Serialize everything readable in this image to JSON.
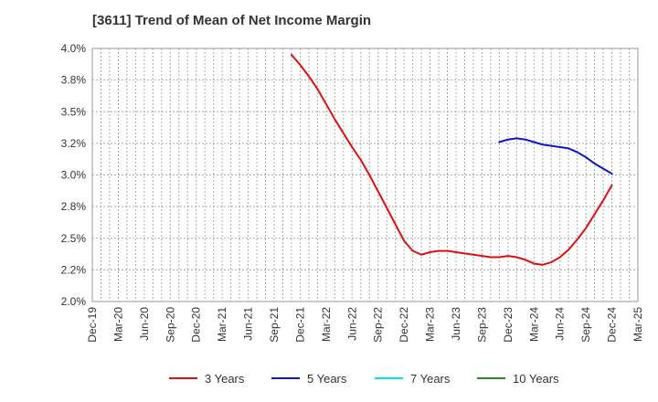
{
  "chart_data": {
    "type": "line",
    "title": "[3611]  Trend of Mean of Net Income Margin",
    "x_ticks": [
      "Dec-19",
      "Mar-20",
      "Jun-20",
      "Sep-20",
      "Dec-20",
      "Mar-21",
      "Jun-21",
      "Sep-21",
      "Dec-21",
      "Mar-22",
      "Jun-22",
      "Sep-22",
      "Dec-22",
      "Mar-23",
      "Jun-23",
      "Sep-23",
      "Dec-23",
      "Mar-24",
      "Jun-24",
      "Sep-24",
      "Dec-24",
      "Mar-25"
    ],
    "y_ticks": [
      "2.0%",
      "2.2%",
      "2.5%",
      "2.8%",
      "3.0%",
      "3.2%",
      "3.5%",
      "3.8%",
      "4.0%"
    ],
    "ylim": [
      2.0,
      4.0
    ],
    "y_unit": "%",
    "grid": true,
    "legend_position": "bottom",
    "series": [
      {
        "name": "3 Years",
        "color": "#dd1111",
        "x": [
          "Nov-21",
          "Dec-21",
          "Jan-22",
          "Feb-22",
          "Mar-22",
          "Apr-22",
          "May-22",
          "Jun-22",
          "Jul-22",
          "Aug-22",
          "Sep-22",
          "Oct-22",
          "Nov-22",
          "Dec-22",
          "Jan-23",
          "Feb-23",
          "Mar-23",
          "Apr-23",
          "May-23",
          "Jun-23",
          "Jul-23",
          "Aug-23",
          "Sep-23",
          "Oct-23",
          "Nov-23",
          "Dec-23",
          "Jan-24",
          "Feb-24",
          "Mar-24",
          "Apr-24",
          "May-24",
          "Jun-24",
          "Jul-24",
          "Aug-24",
          "Sep-24",
          "Oct-24",
          "Nov-24",
          "Dec-24"
        ],
        "values": [
          3.95,
          3.87,
          3.78,
          3.68,
          3.56,
          3.44,
          3.33,
          3.22,
          3.12,
          3.0,
          2.87,
          2.74,
          2.61,
          2.48,
          2.4,
          2.37,
          2.39,
          2.4,
          2.4,
          2.39,
          2.38,
          2.37,
          2.36,
          2.35,
          2.35,
          2.36,
          2.35,
          2.33,
          2.3,
          2.29,
          2.31,
          2.35,
          2.41,
          2.49,
          2.58,
          2.69,
          2.8,
          2.92
        ]
      },
      {
        "name": "5 Years",
        "color": "#0a18c8",
        "x": [
          "Nov-23",
          "Dec-23",
          "Jan-24",
          "Feb-24",
          "Mar-24",
          "Apr-24",
          "May-24",
          "Jun-24",
          "Jul-24",
          "Aug-24",
          "Sep-24",
          "Oct-24",
          "Nov-24",
          "Dec-24"
        ],
        "values": [
          3.26,
          3.28,
          3.29,
          3.28,
          3.26,
          3.24,
          3.23,
          3.22,
          3.21,
          3.18,
          3.14,
          3.09,
          3.05,
          3.01
        ]
      },
      {
        "name": "7 Years",
        "color": "#00e5ee",
        "x": [],
        "values": []
      },
      {
        "name": "10 Years",
        "color": "#2a8a2a",
        "x": [],
        "values": []
      }
    ]
  }
}
